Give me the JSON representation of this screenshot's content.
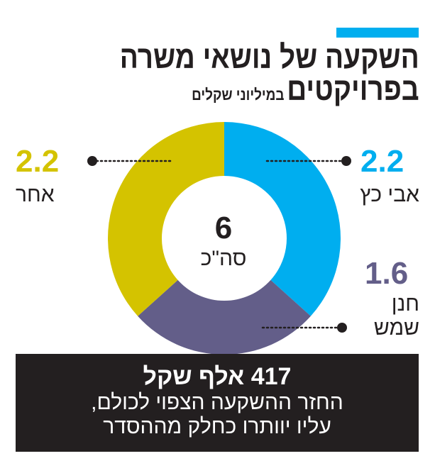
{
  "colors": {
    "accent": "#00aeef",
    "avi": "#00aeef",
    "hanan": "#635e89",
    "other": "#d4c300",
    "text": "#231f20",
    "footer_bg": "#231f20"
  },
  "title": {
    "line1": "השקעה של נושאי משרה",
    "line2": "בפרויקטים",
    "unit": "במיליוני שקלים"
  },
  "chart_data": {
    "type": "pie",
    "variant": "donut",
    "unit": "במיליוני שקלים",
    "slices": [
      {
        "label": "אבי כץ",
        "value": 2.2,
        "value_text": "2.2",
        "color": "#00aeef"
      },
      {
        "label": "חנן שמש",
        "value": 1.6,
        "value_text": "1.6",
        "color": "#635e89"
      },
      {
        "label": "אחר",
        "value": 2.2,
        "value_text": "2.2",
        "color": "#d4c300"
      }
    ],
    "total": {
      "value": 6,
      "value_text": "6",
      "label": "סה\"כ"
    }
  },
  "footer": {
    "headline": "417 אלף שקל",
    "line1": "החזר ההשקעה הצפוי לכולם,",
    "line2": "עליו יוותרו כחלק מההסדר"
  }
}
